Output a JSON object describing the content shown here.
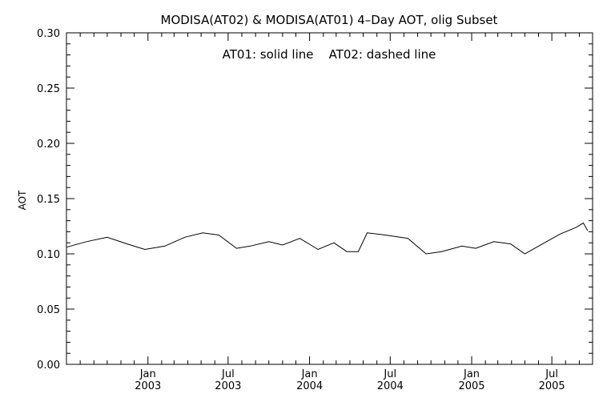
{
  "chart_data": {
    "type": "line",
    "title": "MODISA(AT02) & MODISA(AT01) 4–Day AOT, olig Subset",
    "annotation": "AT01: solid line    AT02: dashed line",
    "xlabel": "",
    "ylabel": "AOT",
    "ylim": [
      0.0,
      0.3
    ],
    "yticks": [
      "0.00",
      "0.05",
      "0.10",
      "0.15",
      "0.20",
      "0.25",
      "0.30"
    ],
    "xlim": [
      "2002-07-01",
      "2005-10-01"
    ],
    "xticks": [
      {
        "date": "2003-01-01",
        "month": "Jan",
        "year": "2003"
      },
      {
        "date": "2003-07-01",
        "month": "Jul",
        "year": "2003"
      },
      {
        "date": "2004-01-01",
        "month": "Jan",
        "year": "2004"
      },
      {
        "date": "2004-07-01",
        "month": "Jul",
        "year": "2004"
      },
      {
        "date": "2005-01-01",
        "month": "Jan",
        "year": "2005"
      },
      {
        "date": "2005-07-01",
        "month": "Jul",
        "year": "2005"
      }
    ],
    "series": [
      {
        "style": "solid",
        "points": [
          {
            "x": "2002-07-01",
            "y": 0.106
          },
          {
            "x": "2002-08-15",
            "y": 0.111
          },
          {
            "x": "2002-10-01",
            "y": 0.115
          },
          {
            "x": "2002-11-15",
            "y": 0.109
          },
          {
            "x": "2002-12-25",
            "y": 0.104
          },
          {
            "x": "2003-02-08",
            "y": 0.107
          },
          {
            "x": "2003-03-25",
            "y": 0.115
          },
          {
            "x": "2003-05-05",
            "y": 0.119
          },
          {
            "x": "2003-06-10",
            "y": 0.117
          },
          {
            "x": "2003-07-20",
            "y": 0.105
          },
          {
            "x": "2003-08-20",
            "y": 0.107
          },
          {
            "x": "2003-10-01",
            "y": 0.111
          },
          {
            "x": "2003-11-01",
            "y": 0.108
          },
          {
            "x": "2003-12-10",
            "y": 0.114
          },
          {
            "x": "2004-01-20",
            "y": 0.104
          },
          {
            "x": "2004-02-25",
            "y": 0.11
          },
          {
            "x": "2004-03-25",
            "y": 0.102
          },
          {
            "x": "2004-04-20",
            "y": 0.102
          },
          {
            "x": "2004-05-10",
            "y": 0.119
          },
          {
            "x": "2004-06-20",
            "y": 0.117
          },
          {
            "x": "2004-08-10",
            "y": 0.114
          },
          {
            "x": "2004-09-20",
            "y": 0.1
          },
          {
            "x": "2004-10-25",
            "y": 0.102
          },
          {
            "x": "2004-12-10",
            "y": 0.107
          },
          {
            "x": "2005-01-10",
            "y": 0.105
          },
          {
            "x": "2005-02-20",
            "y": 0.111
          },
          {
            "x": "2005-03-30",
            "y": 0.109
          },
          {
            "x": "2005-05-01",
            "y": 0.1
          },
          {
            "x": "2005-06-10",
            "y": 0.109
          },
          {
            "x": "2005-07-20",
            "y": 0.118
          },
          {
            "x": "2005-08-25",
            "y": 0.124
          },
          {
            "x": "2005-09-10",
            "y": 0.128
          },
          {
            "x": "2005-09-20",
            "y": 0.121
          }
        ]
      }
    ]
  }
}
